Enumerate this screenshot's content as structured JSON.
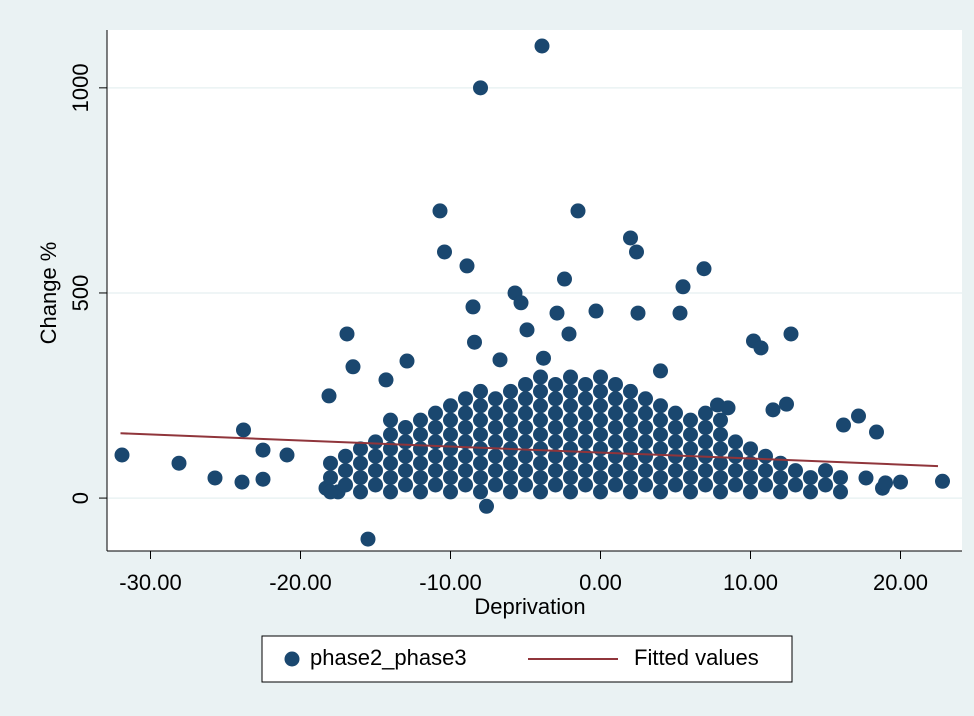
{
  "chart_data": {
    "type": "scatter",
    "x_label": "Deprivation",
    "y_label": "Change %",
    "xlim": [
      -32.9,
      24.1
    ],
    "ylim": [
      -129,
      1141
    ],
    "xticks": [
      {
        "value": -30,
        "label": "-30.00"
      },
      {
        "value": -20,
        "label": "-20.00"
      },
      {
        "value": -10,
        "label": "-10.00"
      },
      {
        "value": 0,
        "label": "0.00"
      },
      {
        "value": 10,
        "label": "10.00"
      },
      {
        "value": 20,
        "label": "20.00"
      }
    ],
    "yticks": [
      0,
      500,
      1000
    ],
    "grid": true,
    "legend": "bottom",
    "series": [
      {
        "name": "phase2_phase3",
        "type": "scatter",
        "color": "#1a476f",
        "x": [
          -3.9,
          -8,
          -10.7,
          -1.5,
          -10.4,
          2,
          2.4,
          -8.9,
          6.9,
          -2.4,
          5.5,
          -5.7,
          -5.3,
          -8.5,
          -2.9,
          -0.3,
          2.5,
          5.3,
          -4.9,
          -16.9,
          -2.1,
          12.7,
          10.2,
          10.7,
          -8.4,
          -12.9,
          -16.5,
          -6.7,
          -3.8,
          4,
          -14.3,
          -18.1,
          -23.8,
          -31.9,
          -28.1,
          -25.7,
          -23.9,
          -22.5,
          -22.5,
          -20.9,
          -18.3,
          -17.5,
          -15.5,
          -7.6,
          17.2,
          16.2,
          18.4,
          22.8,
          20,
          18.8,
          19,
          17.7,
          12.4,
          11.5,
          7.8,
          8.5,
          -18,
          -18,
          -18,
          -17,
          -17,
          -17,
          -16,
          -16,
          -16,
          -16,
          -15,
          -15,
          -15,
          -15,
          -14,
          -14,
          -14,
          -14,
          -14,
          -14,
          -13,
          -13,
          -13,
          -13,
          -13,
          -12,
          -12,
          -12,
          -12,
          -12,
          -12,
          -11,
          -11,
          -11,
          -11,
          -11,
          -11,
          -10,
          -10,
          -10,
          -10,
          -10,
          -10,
          -10,
          -9,
          -9,
          -9,
          -9,
          -9,
          -9,
          -9,
          -8,
          -8,
          -8,
          -8,
          -8,
          -8,
          -8,
          -8,
          -7,
          -7,
          -7,
          -7,
          -7,
          -7,
          -7,
          -6,
          -6,
          -6,
          -6,
          -6,
          -6,
          -6,
          -6,
          -5,
          -5,
          -5,
          -5,
          -5,
          -5,
          -5,
          -5,
          -4,
          -4,
          -4,
          -4,
          -4,
          -4,
          -4,
          -4,
          -4,
          -3,
          -3,
          -3,
          -3,
          -3,
          -3,
          -3,
          -3,
          -2,
          -2,
          -2,
          -2,
          -2,
          -2,
          -2,
          -2,
          -2,
          -1,
          -1,
          -1,
          -1,
          -1,
          -1,
          -1,
          -1,
          0,
          0,
          0,
          0,
          0,
          0,
          0,
          0,
          0,
          1,
          1,
          1,
          1,
          1,
          1,
          1,
          1,
          2,
          2,
          2,
          2,
          2,
          2,
          2,
          2,
          3,
          3,
          3,
          3,
          3,
          3,
          3,
          4,
          4,
          4,
          4,
          4,
          4,
          4,
          5,
          5,
          5,
          5,
          5,
          5,
          6,
          6,
          6,
          6,
          6,
          6,
          7,
          7,
          7,
          7,
          7,
          7,
          8,
          8,
          8,
          8,
          8,
          8,
          9,
          9,
          9,
          9,
          10,
          10,
          10,
          10,
          11,
          11,
          11,
          12,
          12,
          12,
          13,
          13,
          14,
          14,
          15,
          15,
          16,
          16
        ],
        "values": [
          1102,
          1000,
          700,
          700,
          600,
          634,
          600,
          566,
          559,
          534,
          515,
          500,
          476,
          466,
          451,
          456,
          451,
          451,
          410,
          400,
          400,
          400,
          383,
          366,
          380,
          334,
          320,
          337,
          341,
          310,
          288,
          249,
          166,
          105,
          85,
          49,
          39,
          46,
          117,
          105,
          24,
          15,
          -100,
          -20,
          200,
          178,
          161,
          41,
          39,
          24,
          37,
          49,
          229,
          215,
          227,
          220,
          15,
          50,
          85,
          32,
          67,
          102,
          15,
          50,
          85,
          120,
          32,
          67,
          102,
          137,
          15,
          50,
          85,
          120,
          155,
          190,
          32,
          67,
          102,
          137,
          172,
          15,
          50,
          85,
          120,
          155,
          190,
          32,
          67,
          102,
          137,
          172,
          207,
          15,
          50,
          85,
          120,
          155,
          190,
          225,
          32,
          67,
          102,
          137,
          172,
          207,
          242,
          15,
          50,
          85,
          120,
          155,
          190,
          225,
          260,
          32,
          67,
          102,
          137,
          172,
          207,
          242,
          15,
          50,
          85,
          120,
          155,
          190,
          225,
          260,
          32,
          67,
          102,
          137,
          172,
          207,
          242,
          277,
          15,
          50,
          85,
          120,
          155,
          190,
          225,
          260,
          295,
          32,
          67,
          102,
          137,
          172,
          207,
          242,
          277,
          15,
          50,
          85,
          120,
          155,
          190,
          225,
          260,
          295,
          32,
          67,
          102,
          137,
          172,
          207,
          242,
          277,
          15,
          50,
          85,
          120,
          155,
          190,
          225,
          260,
          295,
          32,
          67,
          102,
          137,
          172,
          207,
          242,
          277,
          15,
          50,
          85,
          120,
          155,
          190,
          225,
          260,
          32,
          67,
          102,
          137,
          172,
          207,
          242,
          15,
          50,
          85,
          120,
          155,
          190,
          225,
          32,
          67,
          102,
          137,
          172,
          207,
          15,
          50,
          85,
          120,
          155,
          190,
          32,
          67,
          102,
          137,
          172,
          207,
          15,
          50,
          85,
          120,
          155,
          190,
          32,
          67,
          102,
          137,
          15,
          50,
          85,
          120,
          32,
          67,
          102,
          15,
          50,
          85,
          32,
          67,
          15,
          50,
          32,
          67,
          15,
          50
        ]
      },
      {
        "name": "Fitted values",
        "type": "line",
        "color": "#90353b",
        "x": [
          -32,
          22.5
        ],
        "values": [
          158,
          78
        ]
      }
    ]
  }
}
